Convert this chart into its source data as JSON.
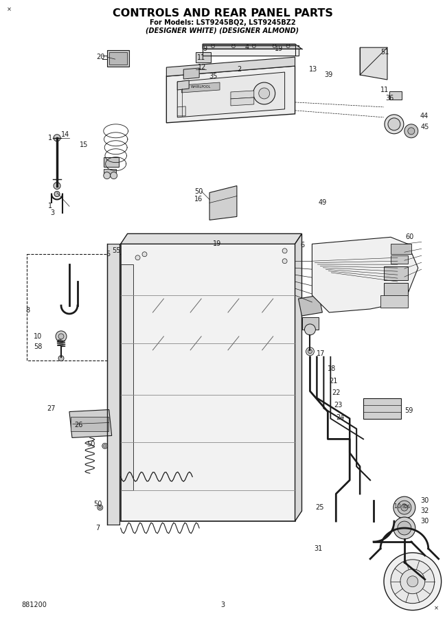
{
  "title_line1": "CONTROLS AND REAR PANEL PARTS",
  "title_line2": "For Models: LST9245BQ2, LST9245BZ2",
  "title_line3": "(DESIGNER WHITE) (DESIGNER ALMOND)",
  "doc_number": "881200",
  "page_number": "3",
  "background_color": "#ffffff",
  "line_color": "#1a1a1a",
  "title_color": "#000000",
  "fig_width": 6.48,
  "fig_height": 9.0,
  "dpi": 100
}
